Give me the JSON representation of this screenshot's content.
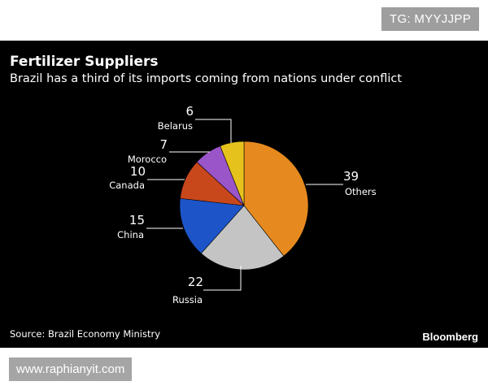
{
  "top_tag": "TG: MYYJJPP",
  "watermark": "www.raphianyit.com",
  "chart_data": {
    "type": "pie",
    "title": "Fertilizer Suppliers",
    "subtitle": "Brazil has a third of its imports coming from nations under conflict",
    "source": "Source: Brazil Economy Ministry",
    "brand": "Bloomberg",
    "slices": [
      {
        "label": "Others",
        "value": 39,
        "value_text": "39",
        "color": "#e68a1f"
      },
      {
        "label": "Russia",
        "value": 22,
        "value_text": "22",
        "color": "#c4c4c4"
      },
      {
        "label": "China",
        "value": 15,
        "value_text": "15",
        "color": "#1d55c9"
      },
      {
        "label": "Canada",
        "value": 10,
        "value_text": "10",
        "color": "#c8481c"
      },
      {
        "label": "Morocco",
        "value": 7,
        "value_text": "7",
        "color": "#9a55c8"
      },
      {
        "label": "Belarus",
        "value": 6,
        "value_text": "6",
        "color": "#e6c21c"
      }
    ]
  }
}
